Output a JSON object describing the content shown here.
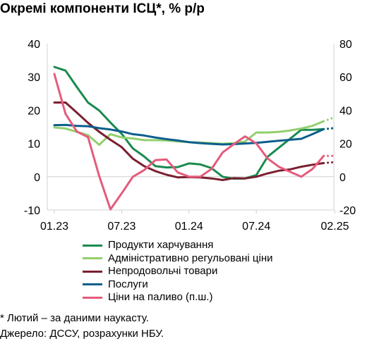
{
  "title": "Окремі компоненти ІСЦ*, % р/р",
  "chart_data": {
    "type": "line",
    "x_tick_labels": [
      "01.23",
      "07.23",
      "01.24",
      "07.24",
      "02.25"
    ],
    "x_tick_months": [
      0,
      6,
      12,
      18,
      25
    ],
    "left_axis": {
      "ylim": [
        -10,
        40
      ],
      "ticks": [
        -10,
        0,
        10,
        20,
        30,
        40
      ]
    },
    "right_axis": {
      "ylim": [
        -20,
        80
      ],
      "ticks": [
        -20,
        0,
        20,
        40,
        60,
        80
      ]
    },
    "grid": false,
    "legend_position": "bottom",
    "series": [
      {
        "name": "Продукти харчування",
        "axis": "left",
        "color": "#1a8a4f",
        "values": [
          33.0,
          31.9,
          27.0,
          22.3,
          19.9,
          16.3,
          12.9,
          8.5,
          6.1,
          3.2,
          2.8,
          2.9,
          4.0,
          3.7,
          2.6,
          0.0,
          -0.6,
          -0.5,
          0.5,
          6.0,
          8.7,
          11.4,
          14.1,
          14.1,
          14.3
        ],
        "forecast": [
          14.3,
          14.6
        ]
      },
      {
        "name": "Адміністративно регульовані ціни",
        "axis": "left",
        "color": "#92cf6d",
        "values": [
          14.8,
          14.5,
          13.5,
          12.5,
          9.6,
          12.8,
          11.8,
          11.5,
          11.0,
          11.0,
          10.9,
          10.6,
          10.4,
          10.3,
          10.1,
          9.9,
          10.1,
          10.6,
          13.3,
          13.3,
          13.5,
          13.9,
          14.5,
          15.3,
          16.7
        ],
        "forecast": [
          16.7,
          17.9
        ]
      },
      {
        "name": "Непродовольчі товари",
        "axis": "left",
        "color": "#7a1f30",
        "values": [
          22.3,
          22.3,
          19.3,
          16.2,
          13.5,
          11.1,
          8.9,
          5.4,
          3.2,
          1.7,
          0.6,
          -0.2,
          -0.1,
          -0.2,
          -0.5,
          -1.0,
          -0.4,
          -0.5,
          0.0,
          1.0,
          1.8,
          2.2,
          3.0,
          3.6,
          4.1
        ],
        "forecast": [
          4.1,
          4.4
        ]
      },
      {
        "name": "Послуги",
        "axis": "left",
        "color": "#0c5e8c",
        "values": [
          15.5,
          15.6,
          15.3,
          15.2,
          14.6,
          14.2,
          13.6,
          12.8,
          12.4,
          11.8,
          11.3,
          10.9,
          10.4,
          10.1,
          9.9,
          9.7,
          9.8,
          10.0,
          10.2,
          10.5,
          10.8,
          11.1,
          11.4,
          12.8,
          14.3
        ],
        "forecast": [
          14.3,
          14.7
        ]
      },
      {
        "name": "Ціни на паливо (п.ш.)",
        "axis": "right",
        "color": "#e55b7b",
        "values": [
          61.8,
          37.8,
          27.2,
          23.8,
          0.4,
          -19.6,
          -10.0,
          0.0,
          4.0,
          10.0,
          10.4,
          2.6,
          0.1,
          0.0,
          4.6,
          14.6,
          19.6,
          24.3,
          20.0,
          11.0,
          6.0,
          3.0,
          0.0,
          4.6,
          12.5
        ],
        "forecast": [
          12.5,
          12.6
        ]
      }
    ]
  },
  "footnotes": {
    "note": "* Лютий – за даними наукасту.",
    "source": "Джерело: ДССУ, розрахунки НБУ."
  }
}
